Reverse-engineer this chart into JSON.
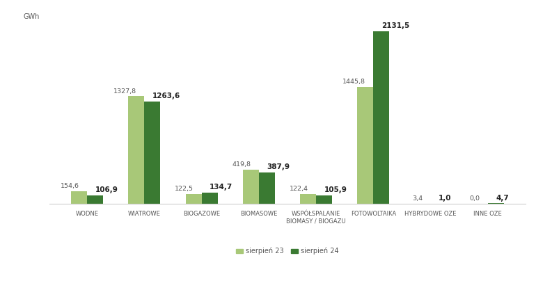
{
  "categories": [
    "WODNE",
    "WIATROWE",
    "BIOGAZOWE",
    "BIOMASOWE",
    "WSPÓŁSPALANIE\nBIOMASY / BIOGAZU",
    "FOTOWOLTAIKA",
    "HYBRYDOWE OZE",
    "INNE OZE"
  ],
  "sierpien23": [
    154.6,
    1327.8,
    122.5,
    419.8,
    122.4,
    1445.8,
    3.4,
    0.0
  ],
  "sierpien24": [
    106.9,
    1263.6,
    134.7,
    387.9,
    105.9,
    2131.5,
    1.0,
    4.7
  ],
  "color23": "#a8c878",
  "color24": "#3a7a32",
  "ylabel": "GWh",
  "legend23": "sierpień 23",
  "legend24": "sierpień 24",
  "ylim": [
    0,
    2350
  ],
  "bar_width": 0.28,
  "background_color": "#ffffff",
  "label_fontsize": 7.0,
  "value_fontsize23": 6.8,
  "value_fontsize24": 7.5,
  "xlabel_fontsize": 6.0,
  "ylabel_fontsize": 7.0
}
